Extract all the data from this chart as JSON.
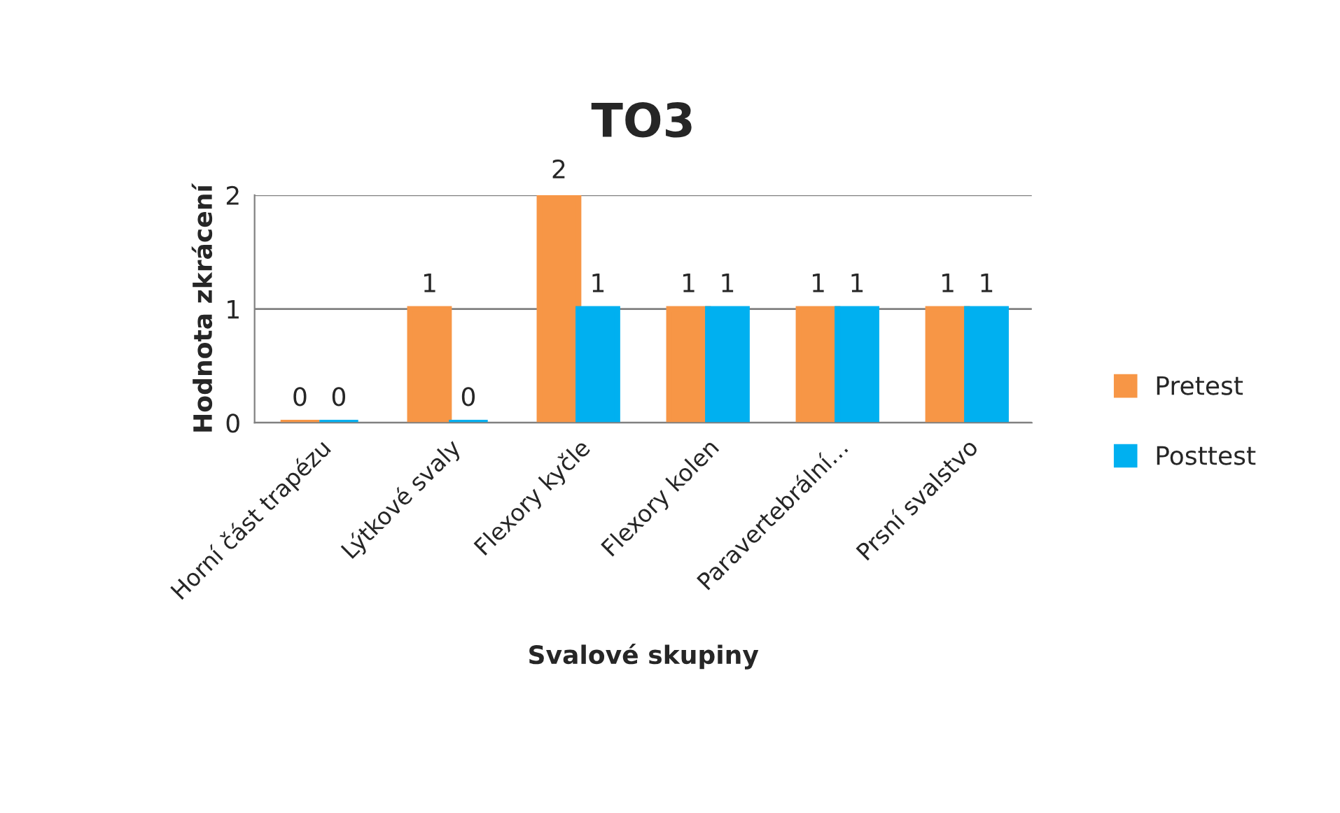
{
  "chart_data": {
    "type": "bar",
    "title": "TO3",
    "xlabel": "Svalové skupiny",
    "ylabel": "Hodnota zkrácení",
    "categories": [
      "Horní část trapézu",
      "Lýtkové svaly",
      "Flexory kyčle",
      "Flexory kolen",
      "Paravertebrální…",
      "Prsní svalstvo"
    ],
    "series": [
      {
        "name": "Pretest",
        "color": "#f79646",
        "values": [
          0,
          1,
          2,
          1,
          1,
          1
        ]
      },
      {
        "name": "Posttest",
        "color": "#00b0f0",
        "values": [
          0,
          0,
          1,
          1,
          1,
          1
        ]
      }
    ],
    "ylim": [
      0,
      2
    ],
    "yticks": [
      0,
      1,
      2
    ],
    "grid": "y",
    "legend": "right",
    "data_labels": true
  }
}
